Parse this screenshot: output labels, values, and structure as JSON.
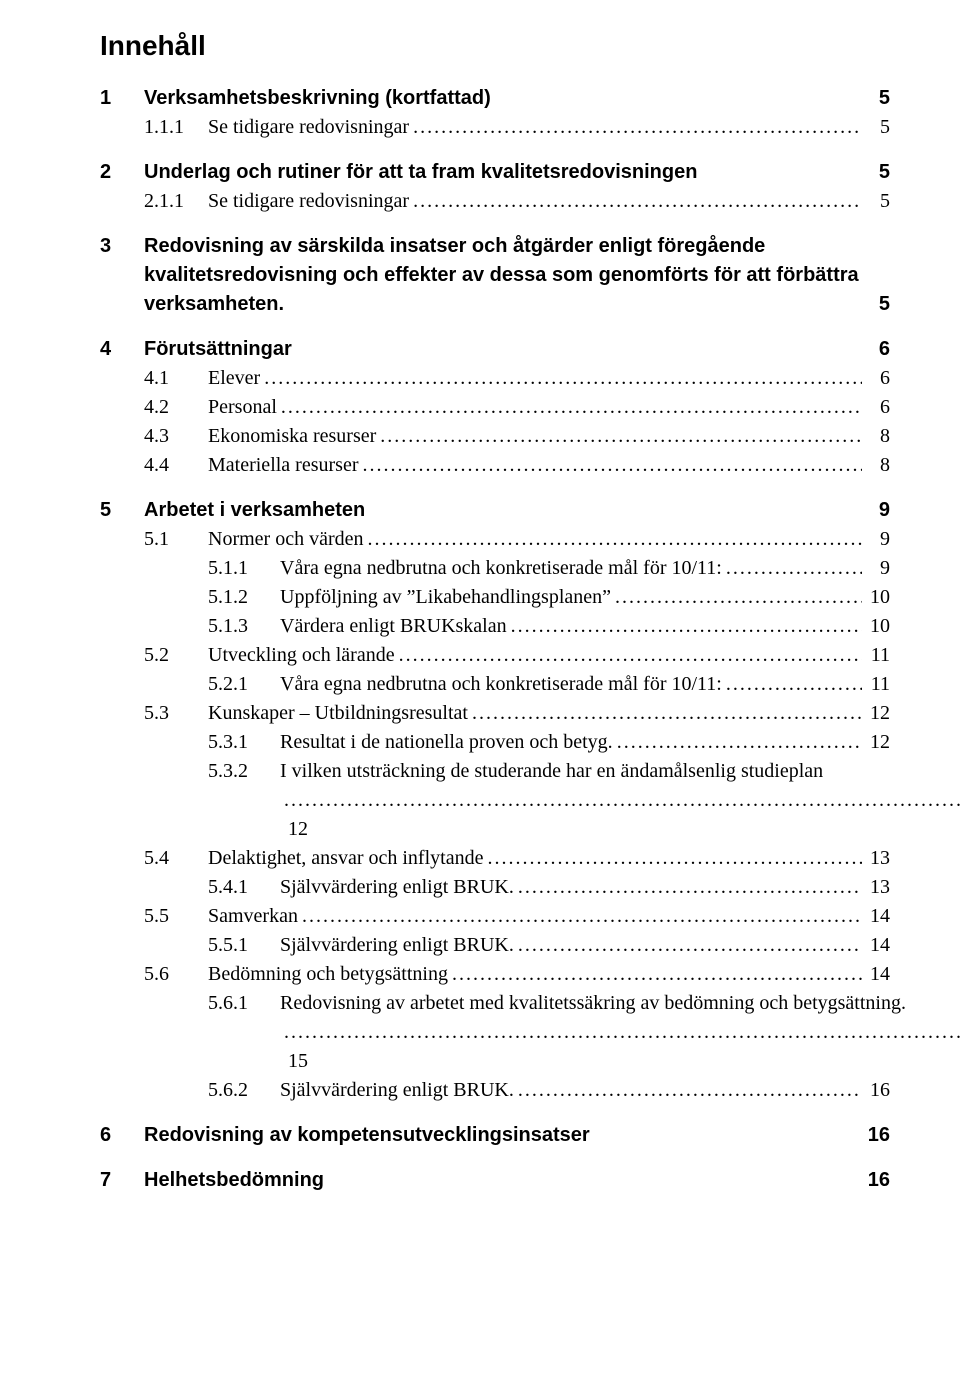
{
  "title": "Innehåll",
  "entries": [
    {
      "lvl": 0,
      "num": "1",
      "label": "Verksamhetsbeskrivning (kortfattad)",
      "page": "5",
      "bold": true,
      "leader": false
    },
    {
      "lvl": 1,
      "num": "1.1.1",
      "label": "Se tidigare redovisningar",
      "page": "5",
      "bold": false,
      "leader": true
    },
    {
      "lvl": 0,
      "num": "2",
      "label": "Underlag och rutiner för att ta fram kvalitetsredovisningen",
      "page": "5",
      "bold": true,
      "leader": false
    },
    {
      "lvl": 1,
      "num": "2.1.1",
      "label": "Se tidigare redovisningar",
      "page": "5",
      "bold": false,
      "leader": true
    },
    {
      "lvl": 0,
      "num": "3",
      "label": "Redovisning av särskilda insatser och åtgärder enligt föregående kvalitetsredovisning och effekter av dessa som genomförts för att förbättra verksamheten.",
      "page": "5",
      "bold": true,
      "leader": false,
      "multi": true
    },
    {
      "lvl": 0,
      "num": "4",
      "label": "Förutsättningar",
      "page": "6",
      "bold": true,
      "leader": false
    },
    {
      "lvl": 1,
      "num": "4.1",
      "label": "Elever",
      "page": "6",
      "bold": false,
      "leader": true
    },
    {
      "lvl": 1,
      "num": "4.2",
      "label": "Personal",
      "page": "6",
      "bold": false,
      "leader": true
    },
    {
      "lvl": 1,
      "num": "4.3",
      "label": "Ekonomiska resurser",
      "page": "8",
      "bold": false,
      "leader": true
    },
    {
      "lvl": 1,
      "num": "4.4",
      "label": "Materiella resurser",
      "page": "8",
      "bold": false,
      "leader": true
    },
    {
      "lvl": 0,
      "num": "5",
      "label": "Arbetet i verksamheten",
      "page": "9",
      "bold": true,
      "leader": false
    },
    {
      "lvl": 1,
      "num": "5.1",
      "label": "Normer och värden",
      "page": "9",
      "bold": false,
      "leader": true
    },
    {
      "lvl": 2,
      "num": "5.1.1",
      "label": "Våra egna nedbrutna och konkretiserade mål för 10/11:",
      "page": "9",
      "bold": false,
      "leader": true
    },
    {
      "lvl": 2,
      "num": "5.1.2",
      "label": "Uppföljning av ”Likabehandlingsplanen”",
      "page": "10",
      "bold": false,
      "leader": true
    },
    {
      "lvl": 2,
      "num": "5.1.3",
      "label": "Värdera enligt BRUKskalan",
      "page": "10",
      "bold": false,
      "leader": true
    },
    {
      "lvl": 1,
      "num": "5.2",
      "label": "Utveckling och lärande",
      "page": "11",
      "bold": false,
      "leader": true
    },
    {
      "lvl": 2,
      "num": "5.2.1",
      "label": "Våra egna nedbrutna och konkretiserade mål för 10/11:",
      "page": "11",
      "bold": false,
      "leader": true
    },
    {
      "lvl": 1,
      "num": "5.3",
      "label": "Kunskaper – Utbildningsresultat",
      "page": "12",
      "bold": false,
      "leader": true
    },
    {
      "lvl": 2,
      "num": "5.3.1",
      "label": "Resultat i de nationella proven och betyg.",
      "page": "12",
      "bold": false,
      "leader": true
    },
    {
      "lvl": 2,
      "num": "5.3.2",
      "label": "I vilken utsträckning de studerande har en ändamålsenlig studieplan",
      "page": "12",
      "bold": false,
      "leader": true,
      "multi": true
    },
    {
      "lvl": 1,
      "num": "5.4",
      "label": "Delaktighet, ansvar och inflytande",
      "page": "13",
      "bold": false,
      "leader": true
    },
    {
      "lvl": 2,
      "num": "5.4.1",
      "label": "Självvärdering enligt BRUK.",
      "page": "13",
      "bold": false,
      "leader": true
    },
    {
      "lvl": 1,
      "num": "5.5",
      "label": "Samverkan",
      "page": "14",
      "bold": false,
      "leader": true
    },
    {
      "lvl": 2,
      "num": "5.5.1",
      "label": "Självvärdering enligt BRUK.",
      "page": "14",
      "bold": false,
      "leader": true
    },
    {
      "lvl": 1,
      "num": "5.6",
      "label": "Bedömning och betygsättning",
      "page": "14",
      "bold": false,
      "leader": true
    },
    {
      "lvl": 2,
      "num": "5.6.1",
      "label": "Redovisning av arbetet med kvalitetssäkring av bedömning och betygsättning.",
      "page": "15",
      "bold": false,
      "leader": true,
      "multi": true
    },
    {
      "lvl": 2,
      "num": "5.6.2",
      "label": "Självvärdering enligt BRUK.",
      "page": "16",
      "bold": false,
      "leader": true
    },
    {
      "lvl": 0,
      "num": "6",
      "label": "Redovisning av kompetensutvecklingsinsatser",
      "page": "16",
      "bold": true,
      "leader": false
    },
    {
      "lvl": 0,
      "num": "7",
      "label": "Helhetsbedömning",
      "page": "16",
      "bold": true,
      "leader": false
    }
  ]
}
